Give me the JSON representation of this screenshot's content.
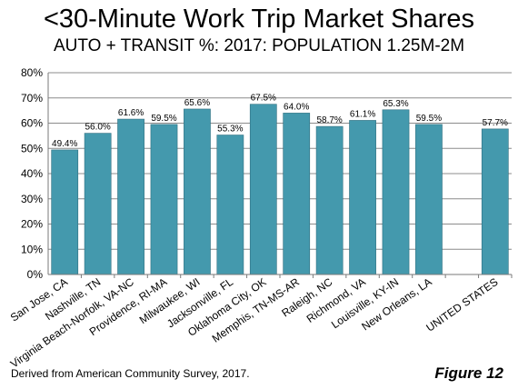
{
  "title": "<30-Minute Work Trip Market Shares",
  "subtitle": "AUTO + TRANSIT %:  2017: POPULATION 1.25M-2M",
  "source": "Derived from American Community Survey, 2017.",
  "figure_label": "Figure 12",
  "colors": {
    "bar": "#4499ad",
    "bar_edge": "#2f6f80",
    "grid": "#8c8c8c",
    "axis": "#7a7a7a"
  },
  "chart_data": {
    "type": "bar",
    "title": "<30-Minute Work Trip Market Shares",
    "subtitle": "AUTO + TRANSIT %:  2017: POPULATION 1.25M-2M",
    "xlabel": "",
    "ylabel": "",
    "ylim": [
      0,
      80
    ],
    "yticks": [
      "0%",
      "10%",
      "20%",
      "30%",
      "40%",
      "50%",
      "60%",
      "70%",
      "80%"
    ],
    "grid": true,
    "categories": [
      "San Jose, CA",
      "Nashville, TN",
      "Virginia Beach-Norfolk, VA-NC",
      "Providence, RI-MA",
      "Milwaukee, WI",
      "Jacksonville, FL",
      "Oklahoma City, OK",
      "Memphis, TN-MS-AR",
      "Raleigh, NC",
      "Richmond, VA",
      "Louisville, KY-IN",
      "New Orleans, LA",
      "",
      "UNITED STATES"
    ],
    "values": [
      49.4,
      56.0,
      61.6,
      59.5,
      65.6,
      55.3,
      67.5,
      64.0,
      58.7,
      61.1,
      65.3,
      59.5,
      null,
      57.7
    ],
    "data_labels": [
      "49.4%",
      "56.0%",
      "61.6%",
      "59.5%",
      "65.6%",
      "55.3%",
      "67.5%",
      "64.0%",
      "58.7%",
      "61.1%",
      "65.3%",
      "59.5%",
      "",
      "57.7%"
    ]
  }
}
